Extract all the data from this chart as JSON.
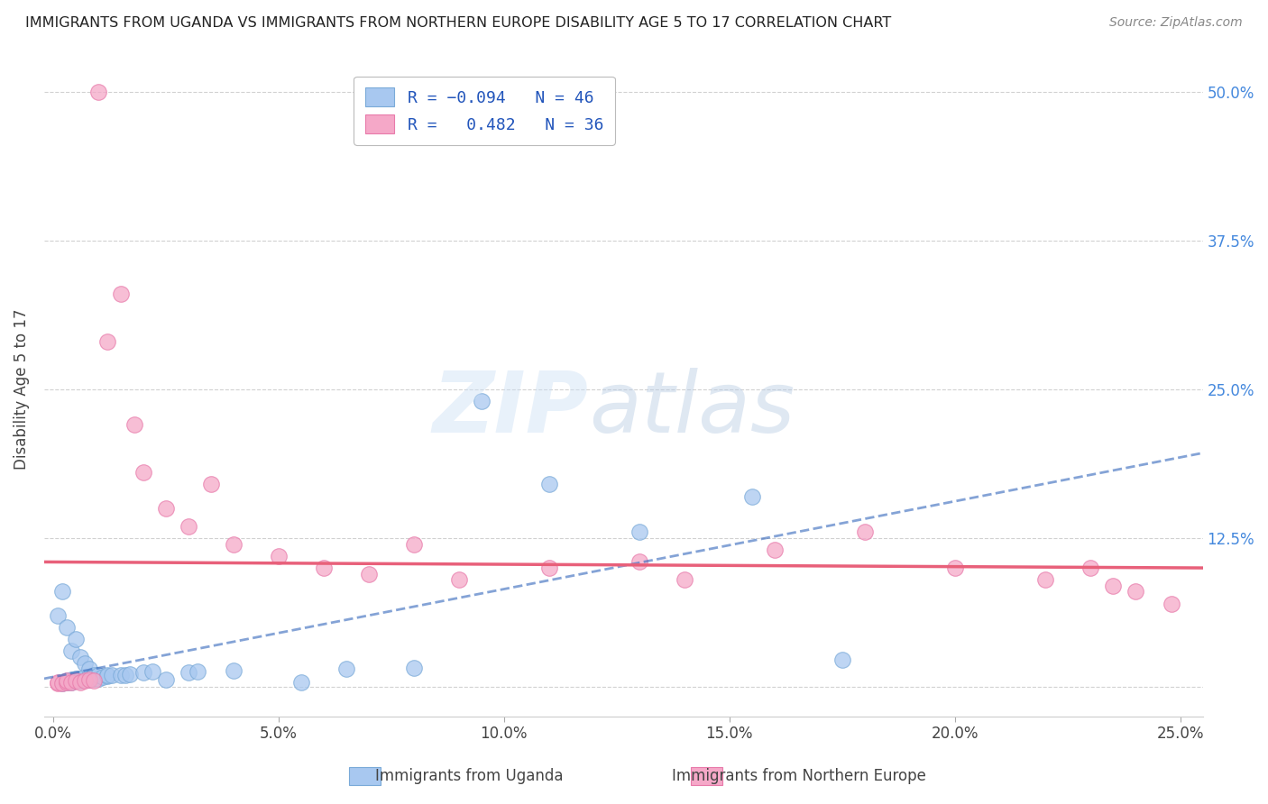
{
  "title": "IMMIGRANTS FROM UGANDA VS IMMIGRANTS FROM NORTHERN EUROPE DISABILITY AGE 5 TO 17 CORRELATION CHART",
  "source": "Source: ZipAtlas.com",
  "ylabel": "Disability Age 5 to 17",
  "xlim": [
    -0.002,
    0.255
  ],
  "ylim": [
    -0.025,
    0.525
  ],
  "xtick_vals": [
    0.0,
    0.05,
    0.1,
    0.15,
    0.2,
    0.25
  ],
  "xtick_labels": [
    "0.0%",
    "5.0%",
    "10.0%",
    "15.0%",
    "20.0%",
    "25.0%"
  ],
  "ytick_vals": [
    0.0,
    0.125,
    0.25,
    0.375,
    0.5
  ],
  "ytick_labels": [
    "",
    "12.5%",
    "25.0%",
    "37.5%",
    "50.0%"
  ],
  "uganda_color": "#a8c8f0",
  "uganda_edge_color": "#7aaad8",
  "northern_europe_color": "#f5a8c8",
  "northern_europe_edge_color": "#e87aaa",
  "uganda_line_color": "#3366bb",
  "northern_europe_line_color": "#e8607a",
  "legend_R_uganda": "-0.094",
  "legend_N_uganda": "46",
  "legend_R_northern": "0.482",
  "legend_N_northern": "36",
  "legend_label_uganda": "Immigrants from Uganda",
  "legend_label_northern": "Immigrants from Northern Europe",
  "background_color": "#ffffff",
  "grid_color": "#cccccc",
  "title_color": "#222222",
  "source_color": "#888888",
  "axis_label_color": "#444444",
  "right_tick_color": "#4488dd",
  "uganda_x": [
    0.001,
    0.002,
    0.002,
    0.003,
    0.003,
    0.003,
    0.004,
    0.004,
    0.004,
    0.005,
    0.005,
    0.005,
    0.006,
    0.006,
    0.006,
    0.007,
    0.007,
    0.007,
    0.008,
    0.008,
    0.008,
    0.009,
    0.009,
    0.01,
    0.01,
    0.011,
    0.012,
    0.012,
    0.013,
    0.015,
    0.016,
    0.017,
    0.02,
    0.022,
    0.025,
    0.03,
    0.032,
    0.04,
    0.055,
    0.065,
    0.08,
    0.095,
    0.11,
    0.13,
    0.155,
    0.175
  ],
  "uganda_y": [
    0.06,
    0.003,
    0.08,
    0.004,
    0.005,
    0.05,
    0.004,
    0.006,
    0.03,
    0.005,
    0.007,
    0.04,
    0.005,
    0.007,
    0.025,
    0.006,
    0.008,
    0.02,
    0.006,
    0.008,
    0.015,
    0.007,
    0.01,
    0.007,
    0.01,
    0.008,
    0.009,
    0.01,
    0.01,
    0.01,
    0.01,
    0.011,
    0.012,
    0.013,
    0.006,
    0.012,
    0.013,
    0.014,
    0.004,
    0.015,
    0.016,
    0.24,
    0.17,
    0.13,
    0.16,
    0.023
  ],
  "northern_x": [
    0.001,
    0.001,
    0.002,
    0.003,
    0.003,
    0.004,
    0.005,
    0.006,
    0.007,
    0.008,
    0.009,
    0.01,
    0.012,
    0.015,
    0.018,
    0.02,
    0.025,
    0.03,
    0.035,
    0.04,
    0.05,
    0.06,
    0.07,
    0.08,
    0.09,
    0.11,
    0.13,
    0.14,
    0.16,
    0.18,
    0.2,
    0.22,
    0.23,
    0.235,
    0.24,
    0.248
  ],
  "northern_y": [
    0.003,
    0.004,
    0.003,
    0.004,
    0.005,
    0.004,
    0.005,
    0.004,
    0.005,
    0.006,
    0.005,
    0.5,
    0.29,
    0.33,
    0.22,
    0.18,
    0.15,
    0.135,
    0.17,
    0.12,
    0.11,
    0.1,
    0.095,
    0.12,
    0.09,
    0.1,
    0.105,
    0.09,
    0.115,
    0.13,
    0.1,
    0.09,
    0.1,
    0.085,
    0.08,
    0.07
  ]
}
